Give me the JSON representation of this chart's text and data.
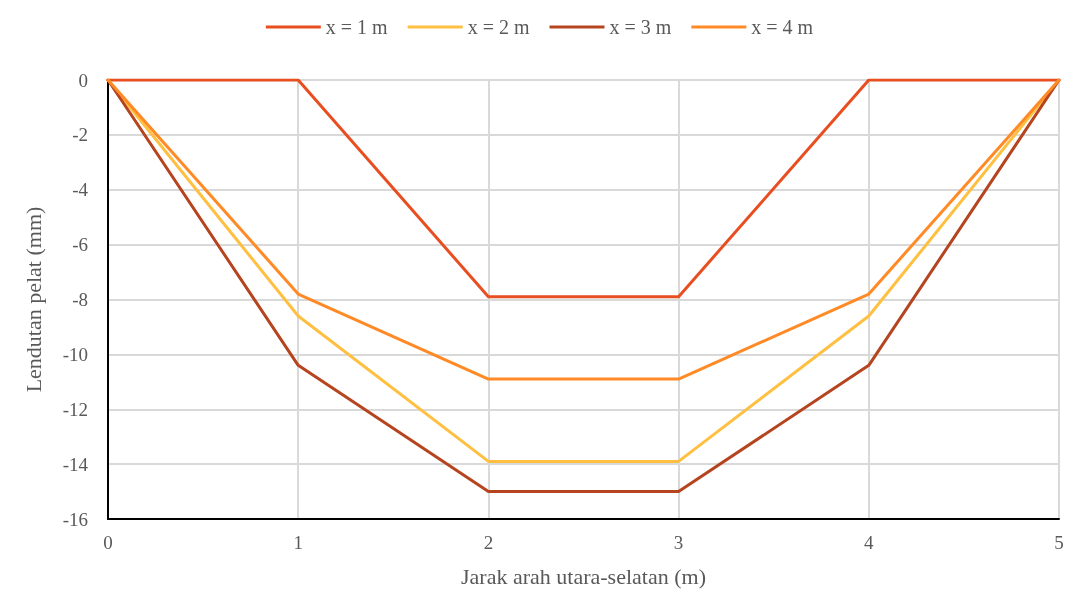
{
  "chart_data": {
    "type": "line",
    "xlabel": "Jarak arah utara-selatan (m)",
    "ylabel": "Lendutan pelat (mm)",
    "x": [
      0,
      1,
      2,
      3,
      4,
      5
    ],
    "series": [
      {
        "name": "x = 1 m",
        "color": "#e84e1f",
        "values": [
          0,
          0,
          -7.9,
          -7.9,
          0,
          0
        ]
      },
      {
        "name": "x = 2 m",
        "color": "#ffbf40",
        "values": [
          0,
          -8.6,
          -13.9,
          -13.9,
          -8.6,
          0
        ]
      },
      {
        "name": "x = 3 m",
        "color": "#b5441f",
        "values": [
          0,
          -10.4,
          -15.0,
          -15.0,
          -10.4,
          0
        ]
      },
      {
        "name": "x = 4 m",
        "color": "#ff8a26",
        "values": [
          0,
          -7.8,
          -10.9,
          -10.9,
          -7.8,
          0
        ]
      }
    ],
    "xlim": [
      0,
      5
    ],
    "xticks": [
      0,
      1,
      2,
      3,
      4,
      5
    ],
    "ylim": [
      -16,
      0
    ],
    "yticks": [
      0,
      -2,
      -4,
      -6,
      -8,
      -10,
      -12,
      -14,
      -16
    ],
    "grid": true,
    "legend": "top",
    "marker": "none",
    "line_style": "solid"
  }
}
